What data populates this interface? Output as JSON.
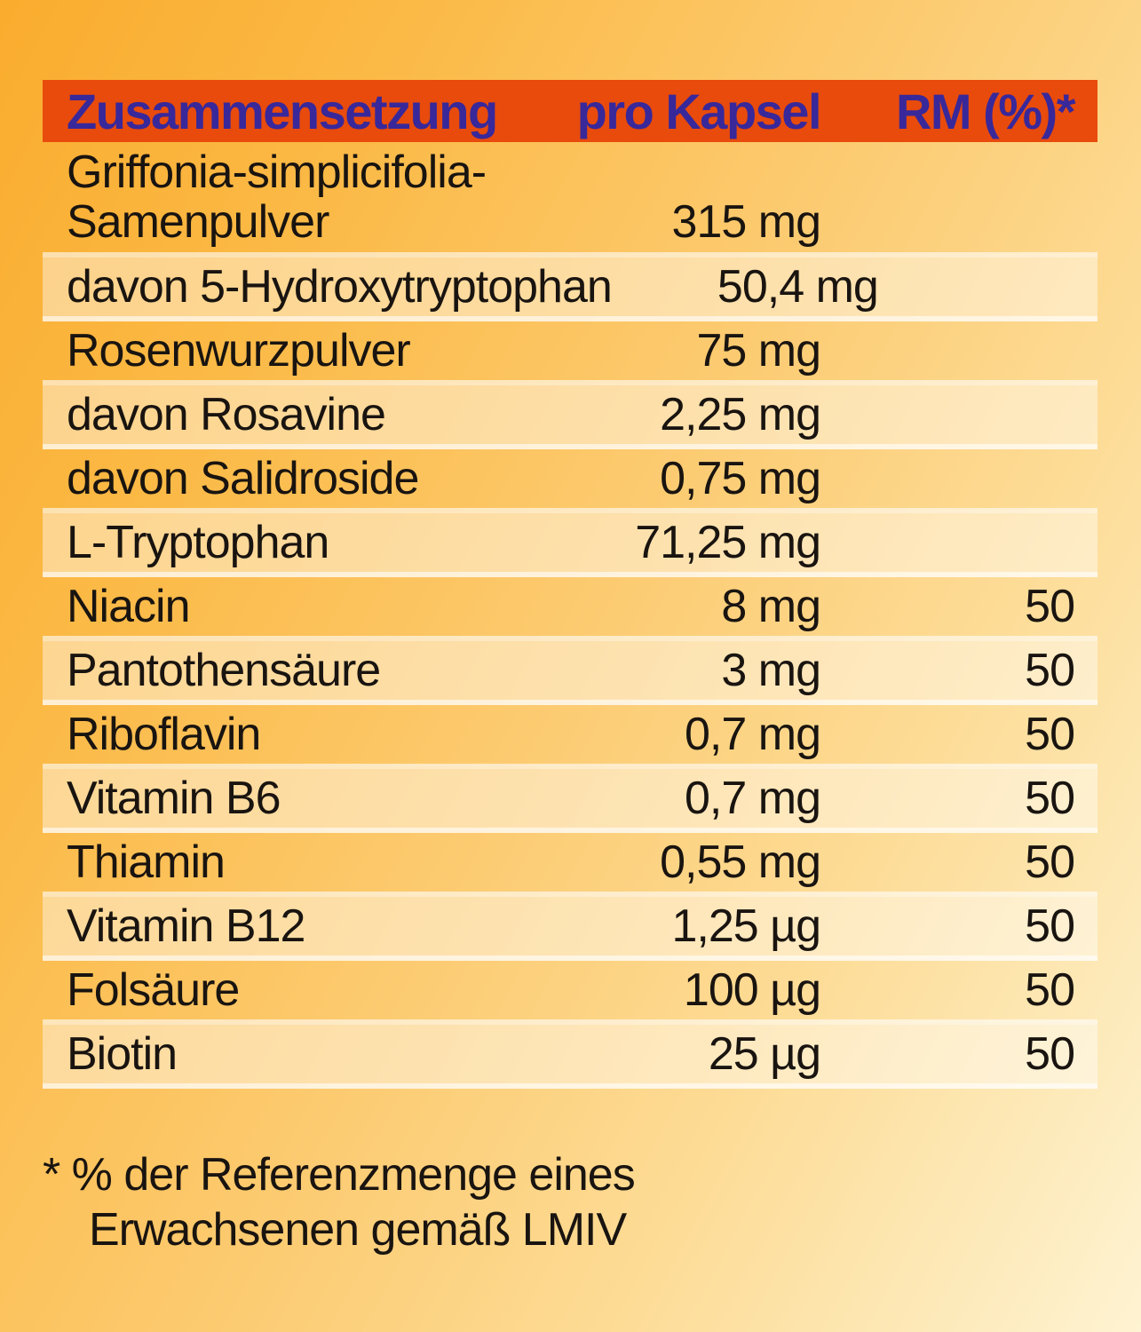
{
  "colors": {
    "header_bar": "#E84B0C",
    "header_text": "#38289A",
    "body_text": "#191410",
    "background_top": "#FAAC2E",
    "background_bottom": "#FEF3D2"
  },
  "header": {
    "col_composition": "Zusammensetzung",
    "col_per_capsule": "pro Kapsel",
    "col_rm": "RM (%)*"
  },
  "rows": [
    {
      "name_line1": "Griffonia-simplicifolia-",
      "name_line2": "Samenpulver",
      "amount": "315 mg",
      "rm": ""
    },
    {
      "name": "davon 5-Hydroxytryptophan",
      "amount": "50,4 mg",
      "rm": ""
    },
    {
      "name": "Rosenwurzpulver",
      "amount": "75 mg",
      "rm": ""
    },
    {
      "name": "davon Rosavine",
      "amount": "2,25 mg",
      "rm": ""
    },
    {
      "name": "davon Salidroside",
      "amount": "0,75 mg",
      "rm": ""
    },
    {
      "name": "L-Tryptophan",
      "amount": "71,25 mg",
      "rm": ""
    },
    {
      "name": "Niacin",
      "amount": "8 mg",
      "rm": "50"
    },
    {
      "name": "Pantothensäure",
      "amount": "3 mg",
      "rm": "50"
    },
    {
      "name": "Riboflavin",
      "amount": "0,7 mg",
      "rm": "50"
    },
    {
      "name": "Vitamin B6",
      "amount": "0,7 mg",
      "rm": "50"
    },
    {
      "name": "Thiamin",
      "amount": "0,55 mg",
      "rm": "50"
    },
    {
      "name": "Vitamin B12",
      "amount": "1,25 µg",
      "rm": "50"
    },
    {
      "name": "Folsäure",
      "amount": "100 µg",
      "rm": "50"
    },
    {
      "name": "Biotin",
      "amount": "25 µg",
      "rm": "50"
    }
  ],
  "footnote": {
    "line1": "* % der Referenzmenge eines",
    "line2": "Erwachsenen gemäß LMIV"
  }
}
